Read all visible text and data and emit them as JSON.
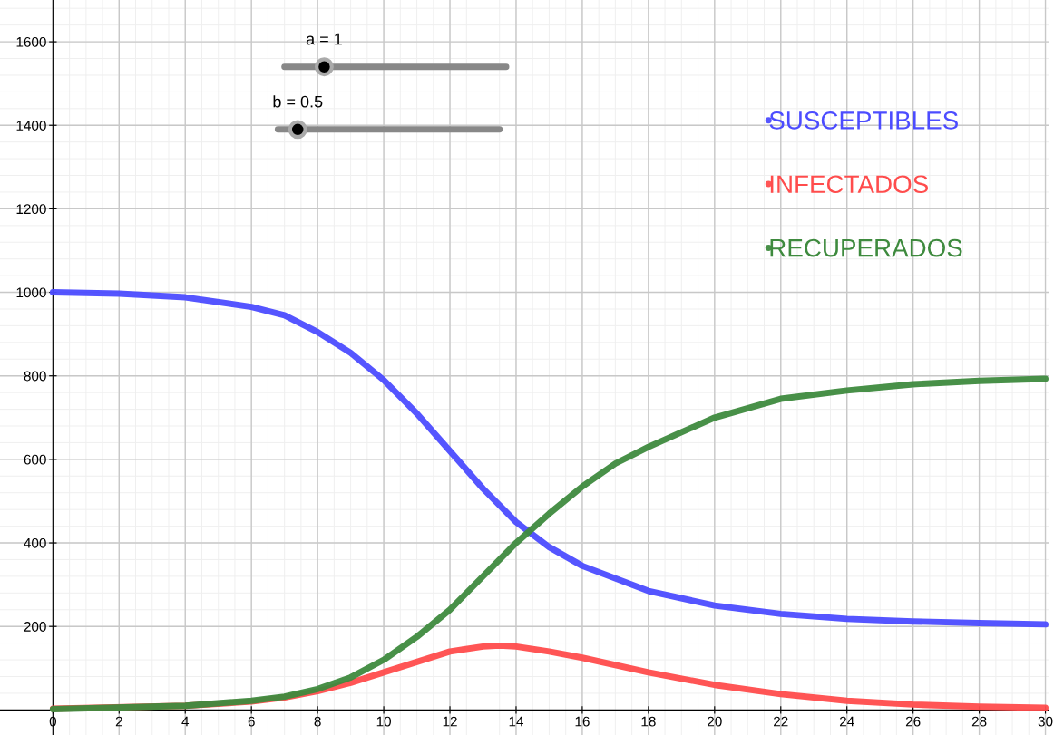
{
  "chart_data": {
    "type": "line",
    "xlim": [
      -1.6,
      30.1
    ],
    "ylim": [
      -60,
      1700
    ],
    "xticks": [
      0,
      2,
      4,
      6,
      8,
      10,
      12,
      14,
      16,
      18,
      20,
      22,
      24,
      26,
      28,
      30
    ],
    "yticks": [
      200,
      400,
      600,
      800,
      1000,
      1200,
      1400,
      1600
    ],
    "grid": true,
    "legend": "top right",
    "marker": "none",
    "line_style": "solid",
    "annotations": [
      "a = 1",
      "b = 0.5"
    ],
    "series": [
      {
        "name": "SUSCEPTIBLES",
        "color": "#4c4cff",
        "x": [
          0,
          2,
          4,
          6,
          7,
          8,
          9,
          10,
          11,
          12,
          13,
          14,
          15,
          16,
          18,
          20,
          22,
          24,
          26,
          28,
          30
        ],
        "values": [
          1000,
          997,
          988,
          965,
          945,
          905,
          855,
          790,
          710,
          620,
          530,
          450,
          390,
          345,
          285,
          250,
          230,
          218,
          212,
          208,
          205
        ]
      },
      {
        "name": "INFECTADOS",
        "color": "#ff4c4c",
        "x": [
          0,
          4,
          6,
          7,
          8,
          9,
          10,
          11,
          12,
          13,
          13.5,
          14,
          15,
          16,
          18,
          20,
          22,
          24,
          26,
          28,
          30
        ],
        "values": [
          3,
          10,
          20,
          30,
          45,
          65,
          90,
          115,
          140,
          152,
          154,
          152,
          140,
          125,
          90,
          60,
          38,
          22,
          13,
          8,
          5
        ]
      },
      {
        "name": "RECUPERADOS",
        "color": "#3e8a3e",
        "x": [
          0,
          4,
          6,
          7,
          8,
          9,
          10,
          11,
          12,
          13,
          14,
          15,
          16,
          17,
          18,
          20,
          22,
          24,
          26,
          28,
          30
        ],
        "values": [
          2,
          10,
          22,
          32,
          50,
          78,
          120,
          175,
          240,
          320,
          400,
          470,
          535,
          590,
          630,
          700,
          745,
          765,
          780,
          788,
          793
        ]
      }
    ]
  }
}
